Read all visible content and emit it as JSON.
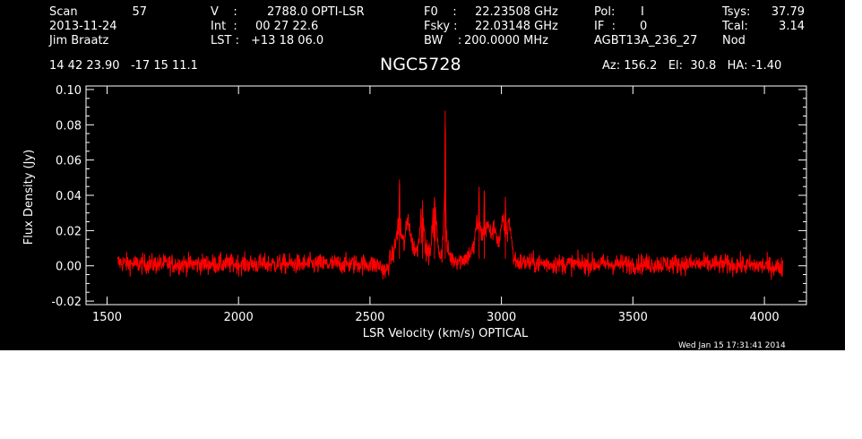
{
  "header": {
    "scan_label": "Scan",
    "scan_value": "57",
    "date": "2013-11-24",
    "observer": "Jim Braatz",
    "v_label": "V    :",
    "v_value": "2788.0 OPTI-LSR",
    "int_label": "Int  :",
    "int_value": "00 27 22.6",
    "lst_label": "LST :",
    "lst_value": "+13 18 06.0",
    "f0_label": "F0    :",
    "f0_value": "22.23508 GHz",
    "fsky_label": "Fsky :",
    "fsky_value": "22.03148 GHz",
    "bw_label": "BW    :",
    "bw_value": "200.0000 MHz",
    "pol_label": "Pol:",
    "pol_value": "I",
    "if_label": "IF  :",
    "if_value": "0",
    "project": "AGBT13A_236_27",
    "tsys_label": "Tsys:",
    "tsys_value": "37.79",
    "tcal_label": "Tcal:",
    "tcal_value": "3.14",
    "mode": "Nod",
    "coords": "14 42 23.90   -17 15 11.1",
    "source": "NGC5728",
    "az_el_ha": "Az: 156.2   El:  30.8   HA: -1.40",
    "timestamp": "Wed Jan 15 17:31:41 2014"
  },
  "chart_data": {
    "type": "line",
    "xlabel": "LSR Velocity (km/s) OPTICAL",
    "ylabel": "Flux Density (Jy)",
    "xlim": [
      1420,
      4160
    ],
    "ylim": [
      -0.022,
      0.102
    ],
    "x_ticks": [
      1500,
      2000,
      2500,
      3000,
      3500,
      4000
    ],
    "y_ticks": [
      -0.02,
      0.0,
      0.02,
      0.04,
      0.06,
      0.08,
      0.1
    ],
    "y_tick_labels": [
      "-0.02",
      "0.00",
      "0.02",
      "0.04",
      "0.06",
      "0.08",
      "0.10"
    ],
    "data_range": [
      1540,
      4070
    ],
    "grid": false,
    "line_color": "#ff0000",
    "axis_color": "#ffffff",
    "series": [
      {
        "points": [
          [
            1540,
            0.002
          ],
          [
            1600,
            0.001
          ],
          [
            1700,
            0.001
          ],
          [
            1800,
            0.001
          ],
          [
            1900,
            0.001
          ],
          [
            2000,
            0.001
          ],
          [
            2100,
            0.001
          ],
          [
            2200,
            0.001
          ],
          [
            2300,
            0.001
          ],
          [
            2400,
            0.001
          ],
          [
            2500,
            0.001
          ],
          [
            2540,
            0.0
          ],
          [
            2560,
            -0.004
          ],
          [
            2575,
            0.003
          ],
          [
            2590,
            0.007
          ],
          [
            2605,
            0.02
          ],
          [
            2612,
            0.049
          ],
          [
            2618,
            0.018
          ],
          [
            2630,
            0.012
          ],
          [
            2645,
            0.028
          ],
          [
            2660,
            0.012
          ],
          [
            2680,
            0.008
          ],
          [
            2700,
            0.037
          ],
          [
            2710,
            0.01
          ],
          [
            2730,
            0.006
          ],
          [
            2745,
            0.039
          ],
          [
            2760,
            0.008
          ],
          [
            2775,
            0.006
          ],
          [
            2786,
            0.088
          ],
          [
            2792,
            0.01
          ],
          [
            2810,
            0.004
          ],
          [
            2840,
            0.003
          ],
          [
            2870,
            0.005
          ],
          [
            2895,
            0.01
          ],
          [
            2905,
            0.025
          ],
          [
            2915,
            0.045
          ],
          [
            2925,
            0.03
          ],
          [
            2935,
            0.042
          ],
          [
            2945,
            0.024
          ],
          [
            2960,
            0.018
          ],
          [
            2975,
            0.022
          ],
          [
            2990,
            0.012
          ],
          [
            3005,
            0.025
          ],
          [
            3015,
            0.038
          ],
          [
            3025,
            0.03
          ],
          [
            3035,
            0.02
          ],
          [
            3045,
            0.005
          ],
          [
            3060,
            0.002
          ],
          [
            3200,
            0.001
          ],
          [
            3400,
            0.001
          ],
          [
            3600,
            0.001
          ],
          [
            3800,
            0.001
          ],
          [
            4000,
            0.0
          ],
          [
            4070,
            -0.001
          ]
        ]
      }
    ]
  }
}
